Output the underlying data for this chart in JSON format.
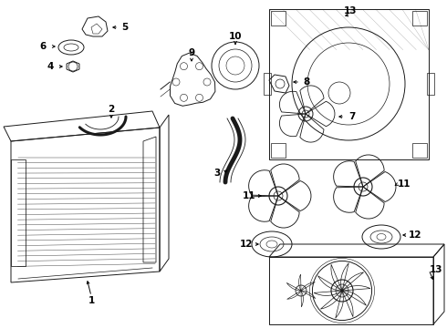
{
  "bg_color": "#ffffff",
  "lc": "#1a1a1a",
  "lw": 0.7,
  "fig_w": 4.9,
  "fig_h": 3.6,
  "dpi": 100
}
